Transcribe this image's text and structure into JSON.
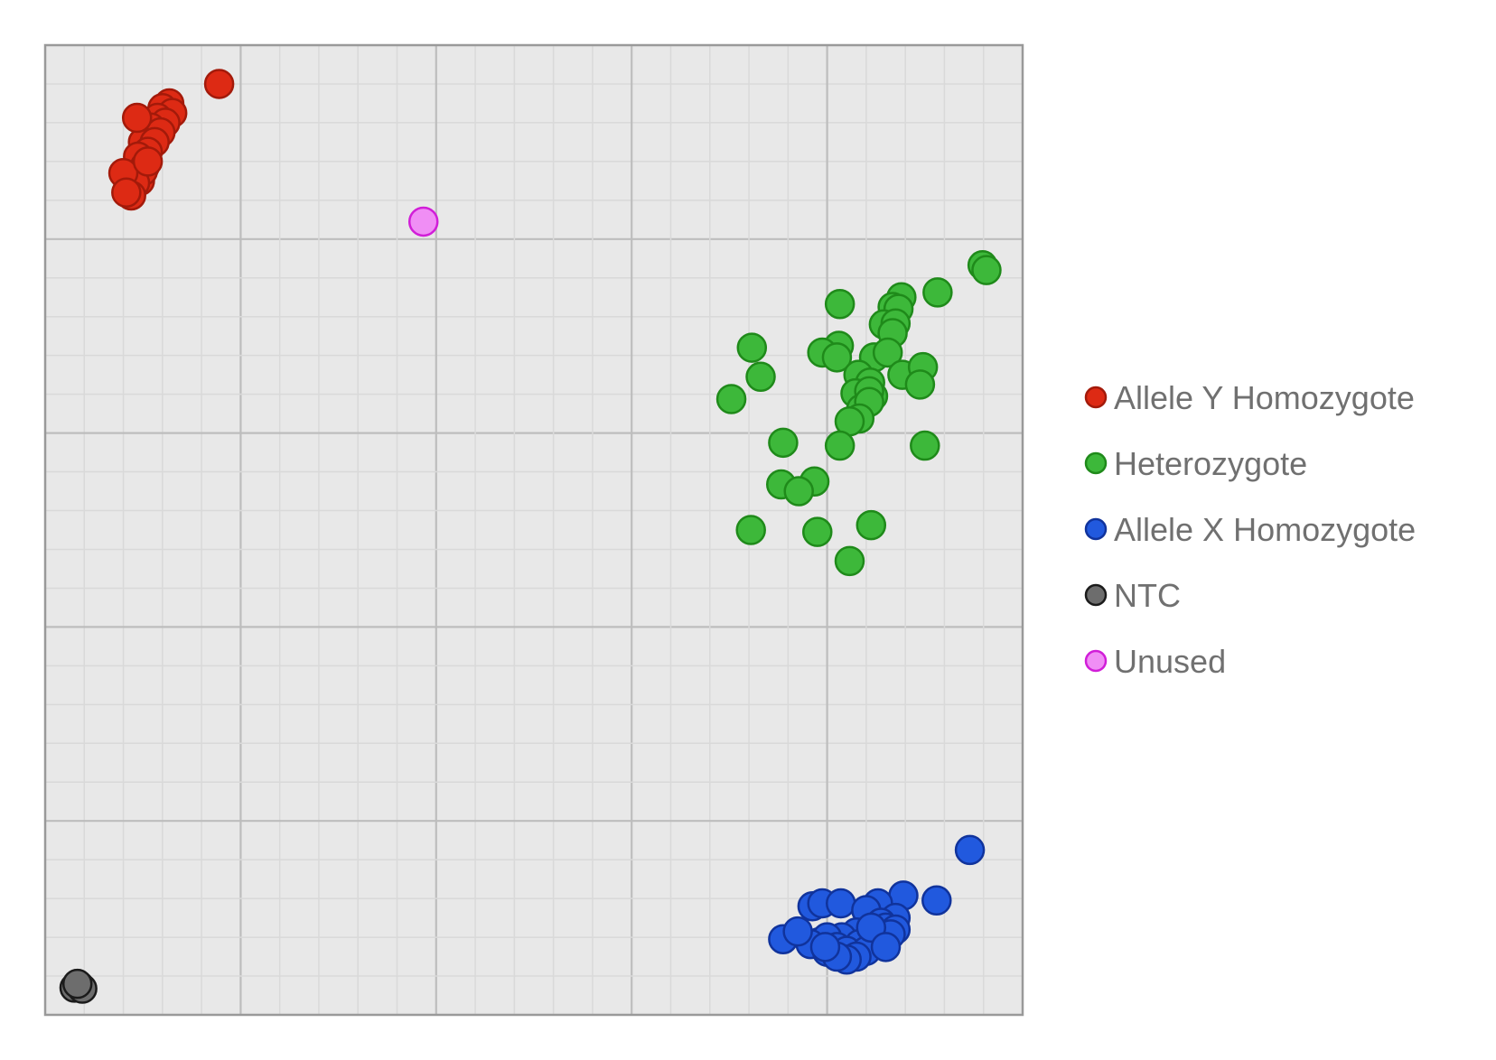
{
  "chart_data": {
    "type": "scatter",
    "title": "",
    "xlabel": "",
    "ylabel": "",
    "xlim": [
      0,
      1
    ],
    "ylim": [
      0,
      1
    ],
    "grid": true,
    "legend_position": "right",
    "series": [
      {
        "name": "Allele Y Homozygote",
        "color": "#dd2a14",
        "stroke": "#a31a0a",
        "points": [
          [
            0.178,
            0.96
          ],
          [
            0.127,
            0.94
          ],
          [
            0.12,
            0.935
          ],
          [
            0.13,
            0.93
          ],
          [
            0.115,
            0.925
          ],
          [
            0.123,
            0.92
          ],
          [
            0.108,
            0.915
          ],
          [
            0.118,
            0.91
          ],
          [
            0.1,
            0.9
          ],
          [
            0.112,
            0.9
          ],
          [
            0.105,
            0.89
          ],
          [
            0.095,
            0.885
          ],
          [
            0.102,
            0.875
          ],
          [
            0.085,
            0.86
          ],
          [
            0.097,
            0.86
          ],
          [
            0.09,
            0.855
          ],
          [
            0.1,
            0.87
          ],
          [
            0.088,
            0.865
          ],
          [
            0.094,
            0.925
          ],
          [
            0.085,
            0.855
          ],
          [
            0.092,
            0.858
          ],
          [
            0.08,
            0.868
          ],
          [
            0.088,
            0.845
          ],
          [
            0.083,
            0.848
          ],
          [
            0.105,
            0.88
          ]
        ]
      },
      {
        "name": "Heterozygote",
        "color": "#3db83a",
        "stroke": "#1f8a1a",
        "points": [
          [
            0.959,
            0.773
          ],
          [
            0.963,
            0.768
          ],
          [
            0.913,
            0.745
          ],
          [
            0.876,
            0.74
          ],
          [
            0.867,
            0.73
          ],
          [
            0.813,
            0.733
          ],
          [
            0.873,
            0.728
          ],
          [
            0.858,
            0.712
          ],
          [
            0.87,
            0.713
          ],
          [
            0.812,
            0.69
          ],
          [
            0.867,
            0.703
          ],
          [
            0.723,
            0.688
          ],
          [
            0.848,
            0.678
          ],
          [
            0.795,
            0.683
          ],
          [
            0.862,
            0.683
          ],
          [
            0.877,
            0.66
          ],
          [
            0.898,
            0.668
          ],
          [
            0.81,
            0.678
          ],
          [
            0.832,
            0.66
          ],
          [
            0.844,
            0.652
          ],
          [
            0.895,
            0.65
          ],
          [
            0.732,
            0.658
          ],
          [
            0.847,
            0.638
          ],
          [
            0.829,
            0.641
          ],
          [
            0.843,
            0.643
          ],
          [
            0.835,
            0.625
          ],
          [
            0.702,
            0.635
          ],
          [
            0.843,
            0.632
          ],
          [
            0.833,
            0.615
          ],
          [
            0.823,
            0.612
          ],
          [
            0.755,
            0.59
          ],
          [
            0.813,
            0.587
          ],
          [
            0.9,
            0.587
          ],
          [
            0.753,
            0.547
          ],
          [
            0.787,
            0.55
          ],
          [
            0.771,
            0.54
          ],
          [
            0.722,
            0.5
          ],
          [
            0.79,
            0.498
          ],
          [
            0.845,
            0.505
          ],
          [
            0.823,
            0.468
          ]
        ]
      },
      {
        "name": "Allele X Homozygote",
        "color": "#2159de",
        "stroke": "#10339c",
        "points": [
          [
            0.946,
            0.17
          ],
          [
            0.878,
            0.123
          ],
          [
            0.912,
            0.118
          ],
          [
            0.785,
            0.112
          ],
          [
            0.795,
            0.115
          ],
          [
            0.814,
            0.115
          ],
          [
            0.852,
            0.115
          ],
          [
            0.84,
            0.108
          ],
          [
            0.87,
            0.1
          ],
          [
            0.855,
            0.095
          ],
          [
            0.86,
            0.09
          ],
          [
            0.87,
            0.088
          ],
          [
            0.85,
            0.085
          ],
          [
            0.825,
            0.08
          ],
          [
            0.84,
            0.078
          ],
          [
            0.83,
            0.085
          ],
          [
            0.815,
            0.08
          ],
          [
            0.792,
            0.075
          ],
          [
            0.8,
            0.08
          ],
          [
            0.833,
            0.073
          ],
          [
            0.85,
            0.078
          ],
          [
            0.865,
            0.083
          ],
          [
            0.755,
            0.078
          ],
          [
            0.783,
            0.073
          ],
          [
            0.81,
            0.07
          ],
          [
            0.82,
            0.066
          ],
          [
            0.84,
            0.066
          ],
          [
            0.8,
            0.065
          ],
          [
            0.83,
            0.06
          ],
          [
            0.82,
            0.057
          ],
          [
            0.81,
            0.06
          ],
          [
            0.798,
            0.07
          ],
          [
            0.845,
            0.09
          ],
          [
            0.86,
            0.07
          ],
          [
            0.77,
            0.086
          ]
        ]
      },
      {
        "name": "NTC",
        "color": "#6d6d6d",
        "stroke": "#1b1b1b",
        "points": [
          [
            0.035,
            0.03
          ],
          [
            0.03,
            0.028
          ],
          [
            0.038,
            0.027
          ],
          [
            0.033,
            0.032
          ]
        ]
      },
      {
        "name": "Unused",
        "color": "#f08ef5",
        "stroke": "#d11ed8",
        "points": [
          [
            0.387,
            0.818
          ]
        ]
      }
    ]
  }
}
